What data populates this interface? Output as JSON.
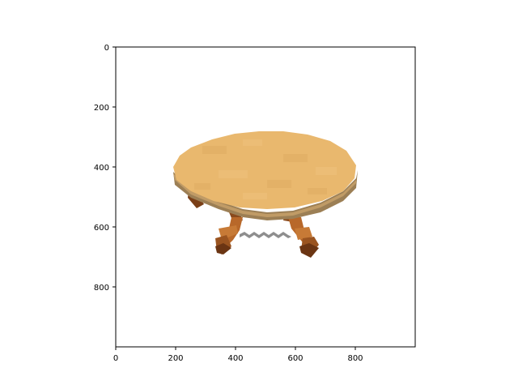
{
  "image_axes": {
    "xlim": [
      0,
      1000
    ],
    "ylim": [
      1000,
      0
    ],
    "y_inverted": true,
    "x_ticks": [
      "0",
      "200",
      "400",
      "600",
      "800"
    ],
    "y_ticks": [
      "0",
      "200",
      "400",
      "600",
      "800"
    ],
    "grid": false
  },
  "subject": {
    "object": "voxel round table",
    "top_color": "#E9B86E",
    "top_edge_color": "#9C7F55",
    "leg_color": "#B8682A",
    "leg_shadow_color": "#7A3F17",
    "stretcher_color": "#8E8E8E"
  }
}
